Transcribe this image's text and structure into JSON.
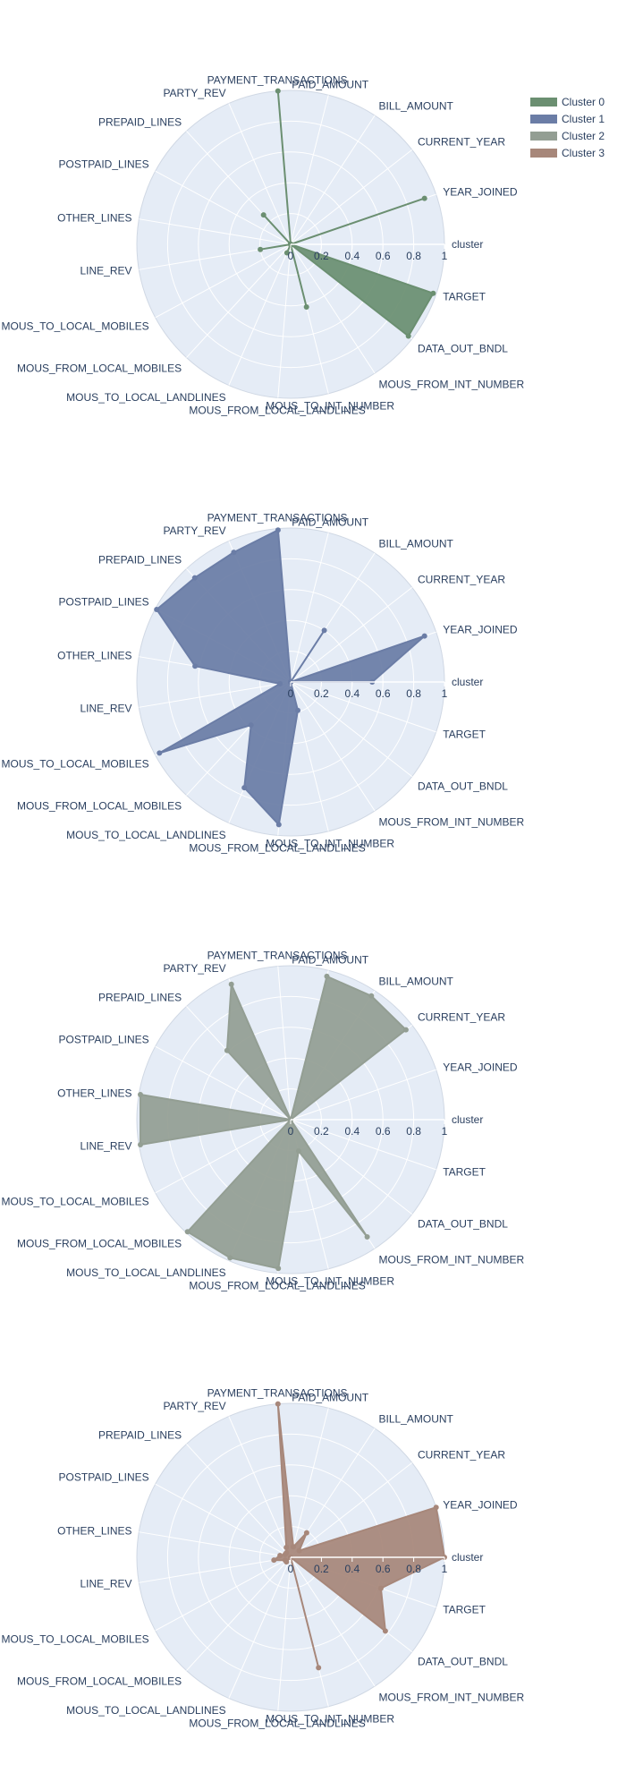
{
  "chart_data": {
    "type": "radar",
    "layout": "four stacked polar subplots, one cluster each",
    "grid": true,
    "radial_range": [
      0,
      1
    ],
    "radial_ticks": [
      "0",
      "0.2",
      "0.4",
      "0.6",
      "0.8",
      "1"
    ],
    "legend_position": "top-right",
    "theta_labels": [
      "cluster",
      "YEAR_JOINED",
      "CURRENT_YEAR",
      "BILL_AMOUNT",
      "PAID_AMOUNT",
      "PAYMENT_TRANSACTIONS",
      "PARTY_REV",
      "PREPAID_LINES",
      "POSTPAID_LINES",
      "OTHER_LINES",
      "LINE_REV",
      "MOUS_TO_LOCAL_MOBILES",
      "MOUS_FROM_LOCAL_MOBILES",
      "MOUS_TO_LOCAL_LANDLINES",
      "MOUS_FROM_LOCAL_LANDLINES",
      "MOUS_TO_INT_NUMBER",
      "MOUS_FROM_INT_NUMBER",
      "DATA_OUT_BNDL",
      "TARGET"
    ],
    "series": [
      {
        "name": "Cluster 0",
        "color": "#6b8f71",
        "values": [
          0,
          0.92,
          0,
          0,
          0,
          1.0,
          0,
          0.26,
          0,
          0,
          0.2,
          0,
          0,
          0.06,
          0,
          0.42,
          0,
          0.97,
          0.98
        ]
      },
      {
        "name": "Cluster 1",
        "color": "#6b7da6",
        "values": [
          0.53,
          0.92,
          0,
          0.4,
          0,
          0.99,
          0.92,
          0.92,
          0.99,
          0.63,
          0.07,
          0.97,
          0.38,
          0.75,
          0.93,
          0.19,
          0,
          0,
          0
        ]
      },
      {
        "name": "Cluster 2",
        "color": "#939e93",
        "values": [
          0,
          0,
          0.95,
          0.96,
          0.96,
          0,
          0.96,
          0.61,
          0,
          0.99,
          0.99,
          0,
          0.99,
          0.98,
          0.97,
          0.21,
          0.91,
          0,
          0
        ]
      },
      {
        "name": "Cluster 3",
        "color": "#a7877a",
        "values": [
          1.0,
          1.0,
          0.07,
          0.19,
          0.07,
          1.0,
          0.07,
          0.04,
          0.04,
          0.07,
          0.11,
          0.04,
          0.04,
          0,
          0,
          0.74,
          0,
          0.78,
          0.62
        ]
      }
    ]
  }
}
